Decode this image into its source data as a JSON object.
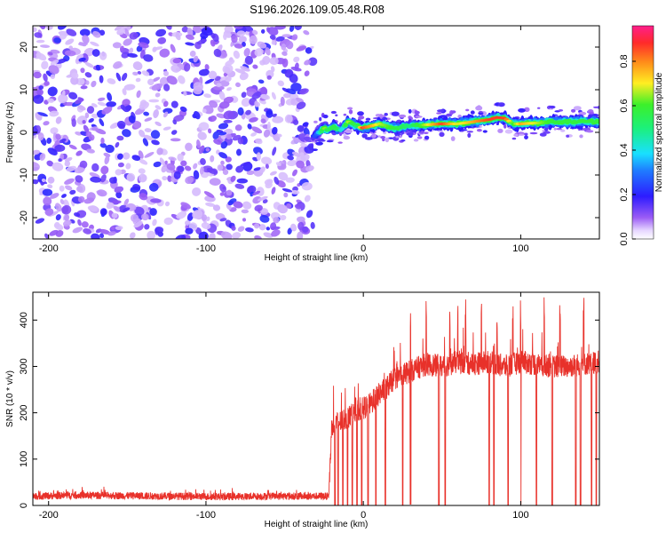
{
  "title": "S196.2026.109.05.48.R08",
  "colors": {
    "signal": "#e8312a",
    "noise": "#8a3cf0",
    "frame": "#000000"
  },
  "chart_data": [
    {
      "type": "heatmap",
      "xlabel": "Height of straight line (km)",
      "ylabel": "Frequency (Hz)",
      "xlim": [
        -210,
        150
      ],
      "ylim": [
        -25,
        25
      ],
      "xticks": [
        -200,
        -100,
        0,
        100
      ],
      "yticks": [
        20,
        10,
        0,
        -10,
        -20
      ],
      "colorbar": {
        "label": "Normalized spectral amplitude",
        "range": [
          0,
          0.96
        ],
        "ticks": [
          "0.0",
          "0.2",
          "0.4",
          "0.6",
          "0.8"
        ]
      },
      "noise_region_x": [
        -210,
        -32
      ],
      "ridge": {
        "x": [
          -32,
          -28,
          -25,
          -22,
          -19,
          -16,
          -13,
          -10,
          -7,
          -4,
          -1,
          5,
          10,
          20,
          30,
          40,
          50,
          60,
          70,
          80,
          85,
          90,
          95,
          100,
          110,
          120,
          130,
          140,
          150
        ],
        "freq": [
          -1.0,
          0.0,
          1.0,
          0.5,
          1.5,
          0.5,
          1.0,
          2.5,
          2.0,
          1.5,
          1.0,
          1.5,
          2.0,
          1.0,
          1.5,
          1.8,
          2.0,
          2.0,
          2.5,
          3.0,
          3.5,
          3.3,
          2.0,
          2.0,
          2.2,
          2.5,
          2.5,
          2.5,
          2.5
        ],
        "amp": [
          0.2,
          0.4,
          0.7,
          0.5,
          0.6,
          0.5,
          0.4,
          0.7,
          0.6,
          0.5,
          0.9,
          0.8,
          0.7,
          0.6,
          0.5,
          0.7,
          0.9,
          0.7,
          0.8,
          0.9,
          0.9,
          0.9,
          0.6,
          0.8,
          0.7,
          0.6,
          0.6,
          0.6,
          0.6
        ]
      }
    },
    {
      "type": "line",
      "xlabel": "Height of straight line (km)",
      "ylabel": "SNR (10 * v/v)",
      "xlim": [
        -210,
        150
      ],
      "ylim": [
        0,
        460
      ],
      "xticks": [
        -200,
        -100,
        0,
        100
      ],
      "yticks": [
        0,
        100,
        200,
        300,
        400
      ],
      "series": [
        {
          "x": [
            -210,
            -180,
            -150,
            -120,
            -90,
            -60,
            -30,
            -22,
            -20,
            -15,
            -10,
            -5,
            0,
            5,
            10,
            15,
            20,
            30,
            40,
            50,
            60,
            70,
            80,
            90,
            100,
            110,
            120,
            130,
            140,
            150
          ],
          "values": [
            20,
            22,
            21,
            20,
            19,
            20,
            20,
            20,
            175,
            180,
            190,
            200,
            210,
            220,
            240,
            255,
            275,
            290,
            305,
            300,
            310,
            305,
            310,
            300,
            310,
            305,
            300,
            300,
            305,
            310
          ]
        }
      ],
      "dropouts_x": [
        -18,
        -16,
        -13,
        -10,
        -7,
        -4,
        -1,
        3,
        8,
        14,
        25,
        30,
        48,
        52,
        80,
        83,
        92,
        100,
        110,
        120,
        135,
        138,
        145,
        148
      ],
      "spikes_x": [
        30,
        40,
        55,
        60,
        65,
        75,
        85,
        95,
        100,
        115,
        125,
        140
      ]
    }
  ]
}
